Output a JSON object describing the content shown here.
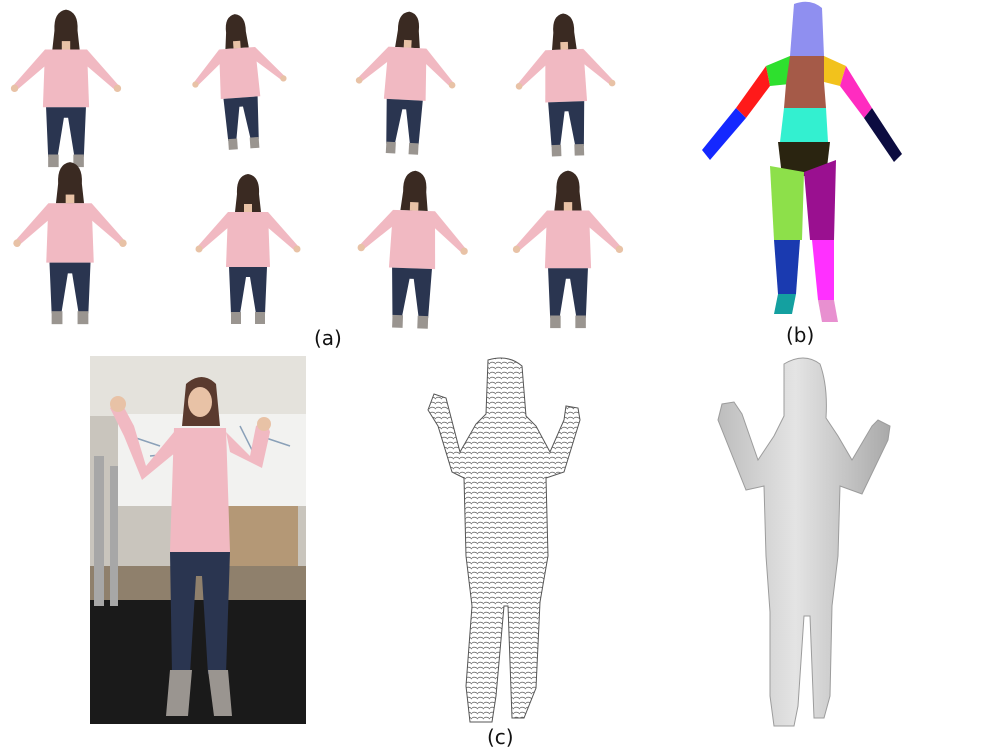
{
  "captions": {
    "a": "(a)",
    "b": "(b)",
    "c": "(c)"
  },
  "colors": {
    "sweater": "#f1b9c2",
    "sweater_shade": "#d892a0",
    "jeans": "#2a3550",
    "skin": "#e8c2a6",
    "hair": "#3a2a22",
    "boots": "#9a9590",
    "mesh_gray": "#d8d8d8",
    "mesh_shade": "#a9a9a9",
    "segment_head": "#8f8ff0",
    "segment_left_shoulder": "#2ee02e",
    "segment_right_shoulder": "#f2c21c",
    "segment_chest": "#a55a48",
    "segment_left_upper_arm": "#ff1a1a",
    "segment_right_upper_arm": "#ff2cc0",
    "segment_left_forearm": "#1428ff",
    "segment_right_forearm": "#0c0c40",
    "segment_abdomen": "#33f0d0",
    "segment_pelvis": "#2a2410",
    "segment_left_thigh": "#8de04a",
    "segment_right_thigh": "#9a1090",
    "segment_left_shin": "#1a3ab0",
    "segment_right_shin": "#ff30ff",
    "segment_left_foot": "#14a0a0",
    "segment_right_foot": "#e890d0"
  }
}
